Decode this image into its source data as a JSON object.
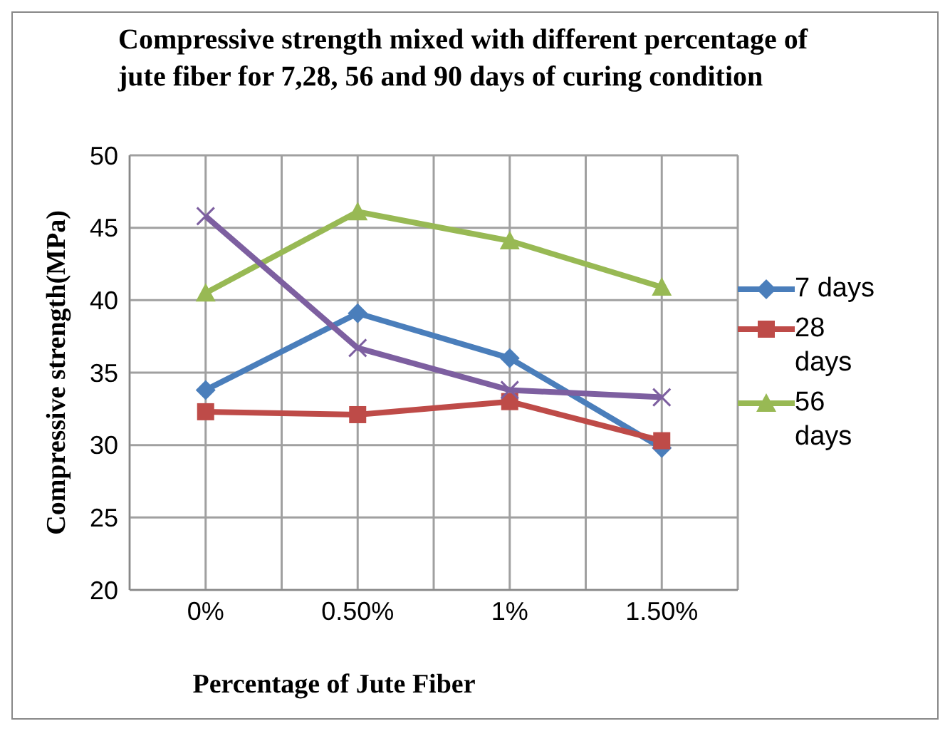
{
  "chart_data": {
    "type": "line",
    "title": "Compressive strength mixed with different percentage of jute fiber for 7,28, 56 and 90 days  of  curing condition",
    "xlabel": "Percentage of Jute Fiber",
    "ylabel": "Compressive strength(MPa)",
    "categories": [
      "0%",
      "0.50%",
      "1%",
      "1.50%"
    ],
    "series": [
      {
        "name": "7 days",
        "color": "#4a7ebb",
        "marker": "diamond",
        "values": [
          33.8,
          39.1,
          36.0,
          29.8
        ]
      },
      {
        "name": "28 days",
        "color": "#be4b48",
        "marker": "square",
        "values": [
          32.3,
          32.1,
          33.0,
          30.3
        ]
      },
      {
        "name": "56 days",
        "color": "#98b954",
        "marker": "triangle",
        "values": [
          40.5,
          46.1,
          44.1,
          40.9
        ]
      },
      {
        "color": "#7d5fa0",
        "marker": "cross",
        "values": [
          45.8,
          36.7,
          33.8,
          33.3
        ]
      }
    ],
    "ylim": [
      20,
      50
    ],
    "yticks": [
      20,
      25,
      30,
      35,
      40,
      45,
      50
    ],
    "grid": true,
    "legend": "right"
  }
}
